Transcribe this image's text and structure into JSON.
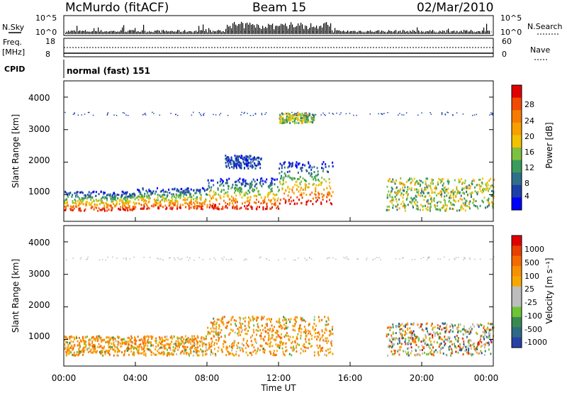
{
  "header": {
    "station": "McMurdo (fitACF)",
    "beam": "Beam 15",
    "date": "02/Mar/2010"
  },
  "noise_panel": {
    "left_label": "N.Sky",
    "right_label": "N.Search",
    "left_ticks": [
      "10^5",
      "10^0"
    ],
    "right_ticks": [
      "10^5",
      "10^0"
    ]
  },
  "freq_panel": {
    "left_label_1": "Freq.",
    "left_label_2": "[MHz]",
    "right_label": "Nave",
    "left_ticks": [
      "18",
      "8"
    ],
    "right_ticks": [
      "60",
      "0"
    ]
  },
  "cpid": {
    "label": "CPID",
    "value": "normal (fast) 151"
  },
  "power_panel": {
    "ylabel": "Slant Range [km]",
    "yticks": [
      "4000",
      "3000",
      "2000",
      "1000"
    ],
    "colorbar_label": "Power [dB]",
    "colorbar_ticks": [
      "28",
      "24",
      "20",
      "16",
      "12",
      "8",
      "4"
    ],
    "colors": [
      "#0000ff",
      "#1d3fa8",
      "#2e6f8a",
      "#3a9c5a",
      "#7ec040",
      "#f2c200",
      "#f7a000",
      "#f77b00",
      "#f24a00",
      "#e00000"
    ]
  },
  "velocity_panel": {
    "ylabel": "Slant Range [km]",
    "yticks": [
      "4000",
      "3000",
      "2000",
      "1000"
    ],
    "colorbar_label": "Velocity [m s⁻¹]",
    "colorbar_ticks": [
      "1000",
      "500",
      "100",
      "25",
      "-25",
      "-100",
      "-500",
      "-1000"
    ],
    "colors": [
      "#2642a8",
      "#2e6a86",
      "#3a8a50",
      "#6cc436",
      "#bdbdbd",
      "#bdbdbd",
      "#f7a800",
      "#f79000",
      "#f46a00",
      "#e84000",
      "#e00000"
    ]
  },
  "xaxis": {
    "label": "Time UT",
    "ticks": [
      "00:00",
      "04:00",
      "08:00",
      "12:00",
      "16:00",
      "20:00",
      "00:00"
    ]
  },
  "chart_data": [
    {
      "type": "heatmap",
      "title": "Power",
      "ylabel": "Slant Range [km]",
      "ylim": [
        180,
        4500
      ],
      "xlim": [
        "00:00",
        "24:00"
      ],
      "colorbar": {
        "label": "Power [dB]",
        "ticks": [
          28,
          24,
          20,
          16,
          12,
          8,
          4
        ]
      },
      "scatter_bands": [
        {
          "t_start": 0,
          "t_end": 4,
          "range_low": 500,
          "range_high": 1100,
          "level": "high"
        },
        {
          "t_start": 4,
          "t_end": 8,
          "range_low": 550,
          "range_high": 1200,
          "level": "high"
        },
        {
          "t_start": 8,
          "t_end": 12,
          "range_low": 550,
          "range_high": 1500,
          "level": "high"
        },
        {
          "t_start": 12,
          "t_end": 15,
          "range_low": 700,
          "range_high": 2000,
          "level": "high"
        },
        {
          "t_start": 18,
          "t_end": 24,
          "range_low": 500,
          "range_high": 1500,
          "level": "medium"
        },
        {
          "t_start": 9,
          "t_end": 11,
          "range_low": 1800,
          "range_high": 2200,
          "level": "low"
        },
        {
          "t_start": 12,
          "t_end": 14,
          "range_low": 3200,
          "range_high": 3500,
          "level": "medium"
        }
      ]
    },
    {
      "type": "heatmap",
      "title": "Velocity",
      "ylabel": "Slant Range [km]",
      "ylim": [
        180,
        4500
      ],
      "xlim": [
        "00:00",
        "24:00"
      ],
      "colorbar": {
        "label": "Velocity [m s⁻¹]",
        "ticks": [
          1000,
          500,
          100,
          25,
          -25,
          -100,
          -500,
          -1000
        ]
      },
      "scatter_bands": [
        {
          "t_start": 0,
          "t_end": 8,
          "range_low": 500,
          "range_high": 1100,
          "velocity": "negative"
        },
        {
          "t_start": 8,
          "t_end": 15,
          "range_low": 500,
          "range_high": 1700,
          "velocity": "negative"
        },
        {
          "t_start": 18,
          "t_end": 24,
          "range_low": 500,
          "range_high": 1500,
          "velocity": "mixed"
        }
      ]
    }
  ]
}
